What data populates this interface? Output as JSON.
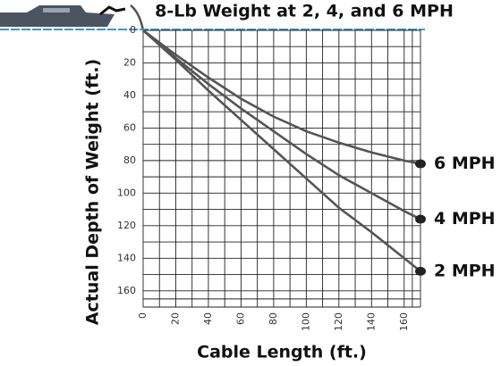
{
  "chart_data": {
    "type": "line",
    "title": "8-Lb Weight at 2, 4, and 6 MPH",
    "x_label": "Cable Length (ft.)",
    "y_label": "Actual Depth of Weight (ft.)",
    "x": [
      0,
      20,
      40,
      60,
      80,
      100,
      120,
      140,
      160,
      170
    ],
    "series": [
      {
        "name": "6 MPH",
        "color": "#555555",
        "values": [
          0,
          15,
          29,
          42,
          53,
          62,
          69,
          75,
          80,
          82
        ]
      },
      {
        "name": "4 MPH",
        "color": "#555555",
        "values": [
          0,
          17,
          33,
          48,
          62,
          76,
          89,
          100,
          111,
          116
        ]
      },
      {
        "name": "2 MPH",
        "color": "#555555",
        "values": [
          0,
          18,
          37,
          55,
          73,
          91,
          109,
          124,
          140,
          148
        ]
      }
    ],
    "xlim": [
      0,
      170
    ],
    "xticks": [
      0,
      20,
      40,
      60,
      80,
      100,
      120,
      140,
      160
    ],
    "ylim": [
      0,
      170
    ],
    "yticks": [
      0,
      20,
      40,
      60,
      80,
      100,
      120,
      140,
      160
    ],
    "y_inverted": true,
    "grid": true
  }
}
